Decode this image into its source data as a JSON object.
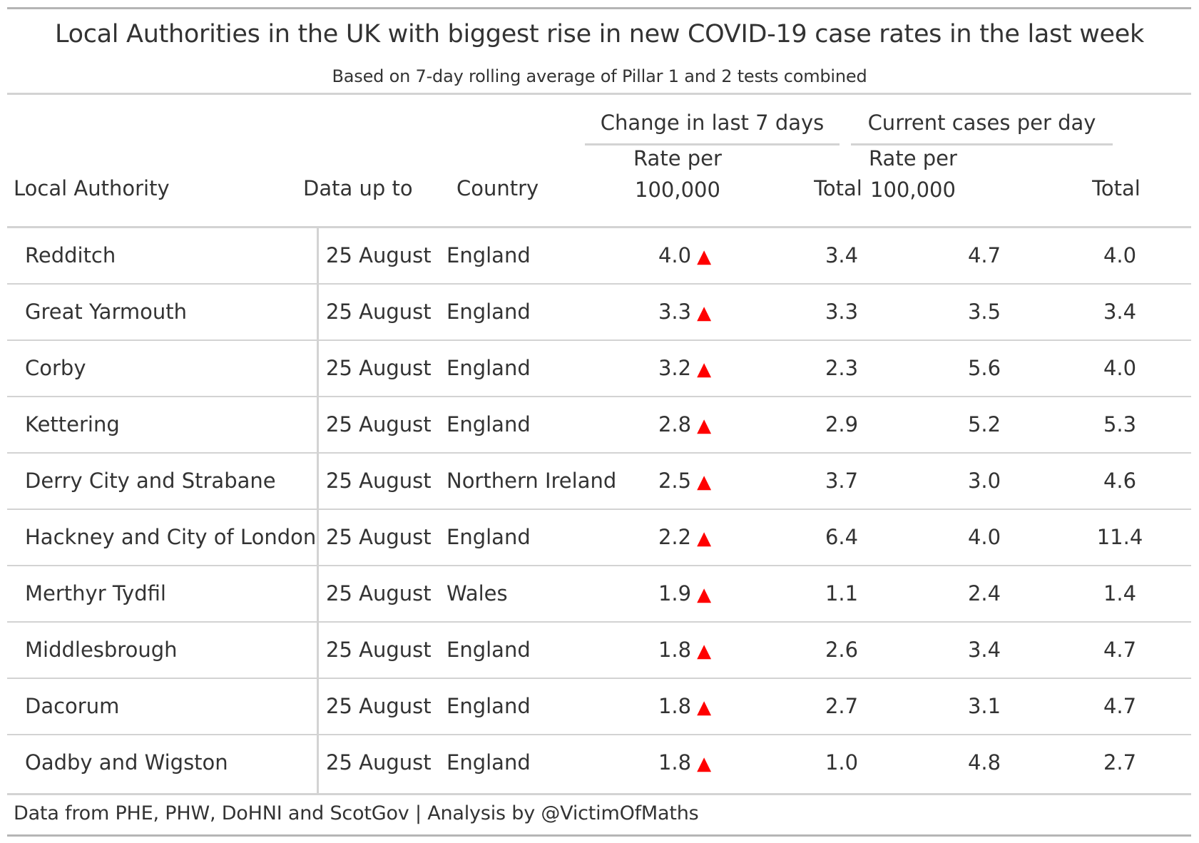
{
  "chart_data": {
    "type": "table",
    "title": "Local Authorities in the UK with biggest rise in new COVID-19 case rates in the last week",
    "subtitle": "Based on 7-day rolling average of Pillar 1 and 2 tests combined",
    "spanners": [
      "Change in last 7 days",
      "Current cases per day"
    ],
    "columns": {
      "authority": "Local Authority",
      "date": "Data up to",
      "country": "Country",
      "rate_line1": "Rate per",
      "rate_line2": "100,000",
      "total": "Total"
    },
    "rows": [
      {
        "authority": "Redditch",
        "date": "25 August",
        "country": "England",
        "change_rate": "4.0",
        "change_total": "3.4",
        "current_rate": "4.7",
        "current_total": "4.0"
      },
      {
        "authority": "Great Yarmouth",
        "date": "25 August",
        "country": "England",
        "change_rate": "3.3",
        "change_total": "3.3",
        "current_rate": "3.5",
        "current_total": "3.4"
      },
      {
        "authority": "Corby",
        "date": "25 August",
        "country": "England",
        "change_rate": "3.2",
        "change_total": "2.3",
        "current_rate": "5.6",
        "current_total": "4.0"
      },
      {
        "authority": "Kettering",
        "date": "25 August",
        "country": "England",
        "change_rate": "2.8",
        "change_total": "2.9",
        "current_rate": "5.2",
        "current_total": "5.3"
      },
      {
        "authority": "Derry City and Strabane",
        "date": "25 August",
        "country": "Northern Ireland",
        "change_rate": "2.5",
        "change_total": "3.7",
        "current_rate": "3.0",
        "current_total": "4.6"
      },
      {
        "authority": "Hackney and City of London",
        "date": "25 August",
        "country": "England",
        "change_rate": "2.2",
        "change_total": "6.4",
        "current_rate": "4.0",
        "current_total": "11.4"
      },
      {
        "authority": "Merthyr Tydfil",
        "date": "25 August",
        "country": "Wales",
        "change_rate": "1.9",
        "change_total": "1.1",
        "current_rate": "2.4",
        "current_total": "1.4"
      },
      {
        "authority": "Middlesbrough",
        "date": "25 August",
        "country": "England",
        "change_rate": "1.8",
        "change_total": "2.6",
        "current_rate": "3.4",
        "current_total": "4.7"
      },
      {
        "authority": "Dacorum",
        "date": "25 August",
        "country": "England",
        "change_rate": "1.8",
        "change_total": "2.7",
        "current_rate": "3.1",
        "current_total": "4.7"
      },
      {
        "authority": "Oadby and Wigston",
        "date": "25 August",
        "country": "England",
        "change_rate": "1.8",
        "change_total": "1.0",
        "current_rate": "4.8",
        "current_total": "2.7"
      }
    ],
    "rise_arrow": "▲",
    "colors": {
      "arrow": "#ff0000",
      "text": "#333333",
      "rule": "#d3d3d3"
    }
  },
  "footer": "Data from PHE, PHW, DoHNI and ScotGov | Analysis by @VictimOfMaths"
}
